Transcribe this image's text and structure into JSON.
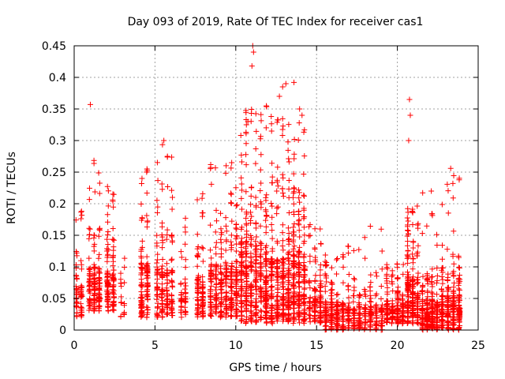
{
  "chart_data": {
    "type": "scatter",
    "title": "Day 093 of 2019, Rate Of TEC Index for receiver cas1",
    "xlabel": "GPS time / hours",
    "ylabel": "ROTI / TECUs",
    "xlim": [
      0,
      25
    ],
    "ylim": [
      0,
      0.45
    ],
    "x_ticks": [
      "0",
      "5",
      "10",
      "15",
      "20",
      "25"
    ],
    "y_ticks": [
      "0",
      "0.05",
      "0.1",
      "0.15",
      "0.2",
      "0.25",
      "0.3",
      "0.35",
      "0.4",
      "0.45"
    ],
    "grid": true,
    "marker": "+",
    "color": "#ff0000",
    "clusters": [
      {
        "t0": 0.0,
        "t1": 0.6,
        "base": 0.02,
        "peak": 0.11,
        "max": 0.19,
        "n": 70
      },
      {
        "t0": 0.8,
        "t1": 1.7,
        "base": 0.03,
        "peak": 0.16,
        "max": 0.276,
        "n": 150
      },
      {
        "t0": 1.9,
        "t1": 2.6,
        "base": 0.03,
        "peak": 0.15,
        "max": 0.238,
        "n": 120
      },
      {
        "t0": 2.8,
        "t1": 3.2,
        "base": 0.02,
        "peak": 0.08,
        "max": 0.12,
        "n": 18
      },
      {
        "t0": 4.0,
        "t1": 4.7,
        "base": 0.02,
        "peak": 0.18,
        "max": 0.263,
        "n": 120
      },
      {
        "t0": 5.0,
        "t1": 6.2,
        "base": 0.02,
        "peak": 0.16,
        "max": 0.3,
        "n": 170
      },
      {
        "t0": 6.5,
        "t1": 7.0,
        "base": 0.02,
        "peak": 0.12,
        "max": 0.2,
        "n": 45
      },
      {
        "t0": 7.5,
        "t1": 8.1,
        "base": 0.02,
        "peak": 0.14,
        "max": 0.223,
        "n": 90
      },
      {
        "t0": 8.3,
        "t1": 10.2,
        "base": 0.02,
        "peak": 0.17,
        "max": 0.266,
        "n": 300
      },
      {
        "t0": 10.2,
        "t1": 11.7,
        "base": 0.01,
        "peak": 0.25,
        "max": 0.35,
        "n": 330
      },
      {
        "t0": 11.7,
        "t1": 13.1,
        "base": 0.01,
        "peak": 0.2,
        "max": 0.37,
        "n": 300
      },
      {
        "t0": 13.1,
        "t1": 14.4,
        "base": 0.01,
        "peak": 0.22,
        "max": 0.35,
        "n": 300
      },
      {
        "t0": 14.4,
        "t1": 15.4,
        "base": 0.01,
        "peak": 0.09,
        "max": 0.18,
        "n": 130
      },
      {
        "t0": 15.4,
        "t1": 16.8,
        "base": 0.0,
        "peak": 0.08,
        "max": 0.12,
        "n": 200
      },
      {
        "t0": 16.8,
        "t1": 19.2,
        "base": 0.0,
        "peak": 0.07,
        "max": 0.165,
        "n": 230
      },
      {
        "t0": 19.2,
        "t1": 20.5,
        "base": 0.01,
        "peak": 0.07,
        "max": 0.11,
        "n": 180
      },
      {
        "t0": 20.5,
        "t1": 21.4,
        "base": 0.01,
        "peak": 0.14,
        "max": 0.2,
        "n": 200
      },
      {
        "t0": 21.4,
        "t1": 22.6,
        "base": 0.0,
        "peak": 0.09,
        "max": 0.22,
        "n": 230
      },
      {
        "t0": 22.6,
        "t1": 24.0,
        "base": 0.0,
        "peak": 0.1,
        "max": 0.25,
        "n": 260
      }
    ],
    "outliers": [
      {
        "x": 1.0,
        "y": 0.357
      },
      {
        "x": 10.75,
        "y": 0.33
      },
      {
        "x": 11.05,
        "y": 0.45
      },
      {
        "x": 11.0,
        "y": 0.418
      },
      {
        "x": 11.1,
        "y": 0.44
      },
      {
        "x": 12.7,
        "y": 0.37
      },
      {
        "x": 12.9,
        "y": 0.385
      },
      {
        "x": 13.1,
        "y": 0.39
      },
      {
        "x": 13.6,
        "y": 0.392
      },
      {
        "x": 13.95,
        "y": 0.35
      },
      {
        "x": 14.1,
        "y": 0.34
      },
      {
        "x": 5.55,
        "y": 0.3
      },
      {
        "x": 20.75,
        "y": 0.365
      },
      {
        "x": 20.8,
        "y": 0.34
      },
      {
        "x": 20.7,
        "y": 0.3
      },
      {
        "x": 22.1,
        "y": 0.22
      },
      {
        "x": 23.3,
        "y": 0.256
      }
    ]
  }
}
